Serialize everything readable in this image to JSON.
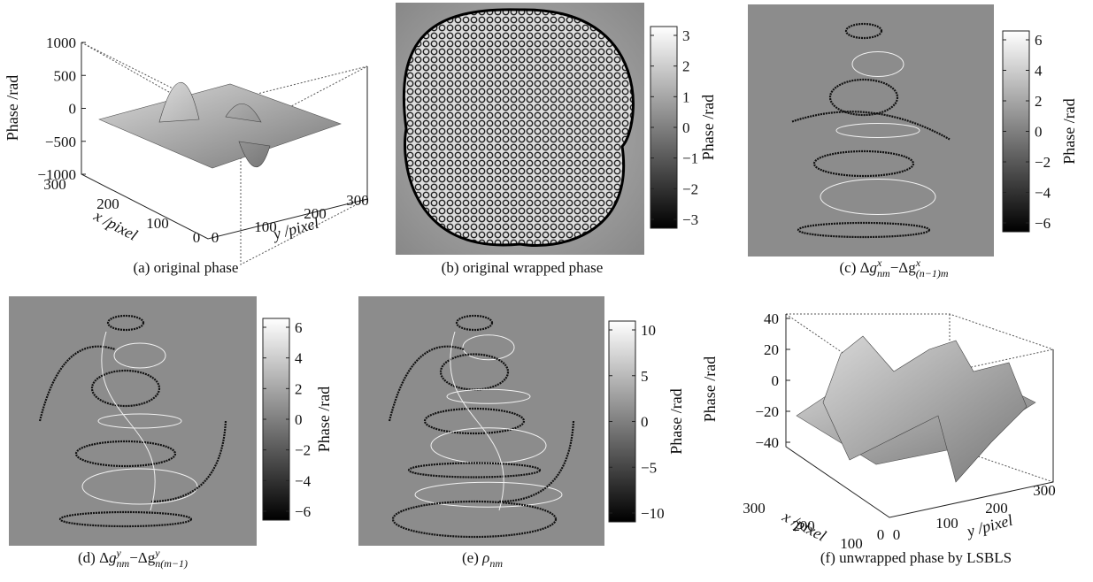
{
  "panels": [
    {
      "caption": [
        "(a) original phase"
      ],
      "z_label": "Phase /rad",
      "x_label": "x /pixel",
      "y_label": "y /pixel",
      "z_ticks": [
        "1000",
        "500",
        "0",
        "−500",
        "−1000"
      ],
      "x_ticks": [
        "300",
        "200",
        "100",
        "0"
      ],
      "y_ticks": [
        "0",
        "100",
        "200",
        "300"
      ]
    },
    {
      "caption": [
        "(b) original wrapped phase"
      ],
      "colorbar": {
        "label": "Phase /rad",
        "ticks": [
          "3",
          "2",
          "1",
          "0",
          "−1",
          "−2",
          "−3"
        ]
      }
    },
    {
      "caption": [
        "(c) Δ",
        "g",
        "x",
        "nm",
        "−Δg",
        "x",
        "(n−1)m"
      ],
      "colorbar": {
        "label": "Phase /rad",
        "ticks": [
          "6",
          "4",
          "2",
          "0",
          "−2",
          "−4",
          "−6"
        ]
      }
    },
    {
      "caption": [
        "(d) Δ",
        "g",
        "y",
        "nm",
        "−Δg",
        "y",
        "n(m−1)"
      ],
      "colorbar": {
        "label": "Phase /rad",
        "ticks": [
          "6",
          "4",
          "2",
          "0",
          "−2",
          "−4",
          "−6"
        ]
      }
    },
    {
      "caption": [
        "(e) ",
        "ρ",
        "nm"
      ],
      "colorbar": {
        "label": "Phase /rad",
        "ticks": [
          "10",
          "5",
          "0",
          "−5",
          "−10"
        ]
      }
    },
    {
      "caption": [
        "(f) unwrapped phase by LSBLS"
      ],
      "z_label": "Phase /rad",
      "x_label": "x /pixel",
      "y_label": "y /pixel",
      "z_ticks": [
        "40",
        "20",
        "0",
        "−20",
        "−40"
      ],
      "x_ticks": [
        "300",
        "200",
        "100",
        "0"
      ],
      "y_ticks": [
        "0",
        "100",
        "200",
        "300"
      ]
    }
  ]
}
